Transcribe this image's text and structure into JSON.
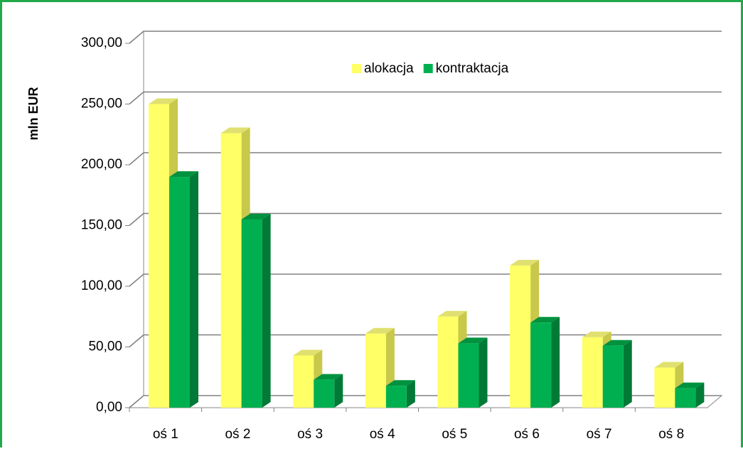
{
  "chart_data": {
    "type": "bar3d",
    "y_label": "mln EUR",
    "categories": [
      "oś 1",
      "oś 2",
      "oś 3",
      "oś 4",
      "oś 5",
      "oś 6",
      "oś 7",
      "oś 8"
    ],
    "series": [
      {
        "name": "alokacja",
        "color": "#ffff66",
        "values": [
          250,
          226,
          43,
          61,
          75,
          117,
          58,
          33
        ]
      },
      {
        "name": "kontraktacja",
        "color": "#00b050",
        "values": [
          190,
          155,
          23,
          18,
          53,
          70,
          51,
          16
        ]
      }
    ],
    "ylim": [
      0,
      300
    ],
    "yticks": [
      {
        "value": 0,
        "label": "0,00"
      },
      {
        "value": 50,
        "label": "50,00"
      },
      {
        "value": 100,
        "label": "100,00"
      },
      {
        "value": 150,
        "label": "150,00"
      },
      {
        "value": 200,
        "label": "200,00"
      },
      {
        "value": 250,
        "label": "250,00"
      },
      {
        "value": 300,
        "label": "300,00"
      }
    ],
    "grid": true,
    "legend": "top"
  }
}
